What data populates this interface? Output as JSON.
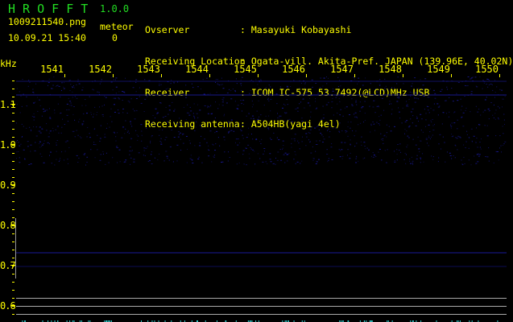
{
  "header": {
    "app_title": "H R O F F T",
    "version": "1.0.0",
    "filename": "1009211540.png",
    "datetime": "10.09.21 15:40",
    "meteor_label": "meteor",
    "meteor_count": "0"
  },
  "info": [
    {
      "label": "Ovserver",
      "value": ": Masayuki Kobayashi"
    },
    {
      "label": "Receiving Location",
      "value": ": Ogata-vill. Akita-Pref. JAPAN (139.96E, 40.02N)"
    },
    {
      "label": "Receiver",
      "value": ": ICOM IC-575 53.7492(@LCD)MHz USB"
    },
    {
      "label": "Receiving antenna",
      "value": ": A504HB(yagi 4el)"
    }
  ],
  "chart_data": {
    "type": "heatmap",
    "yunit": "kHz",
    "x_ticks": [
      "1541",
      "1542",
      "1543",
      "1544",
      "1545",
      "1546",
      "1547",
      "1548",
      "1549",
      "1550"
    ],
    "y_ticks": [
      "1.1",
      "1.0",
      "0.9",
      "0.8",
      "0.7",
      "0.6"
    ],
    "ylim": [
      0.58,
      1.2
    ],
    "colors": {
      "background": "#000000",
      "signal": "#1a1aa0",
      "axis_text": "#ffff00",
      "title": "#22dd22"
    }
  }
}
